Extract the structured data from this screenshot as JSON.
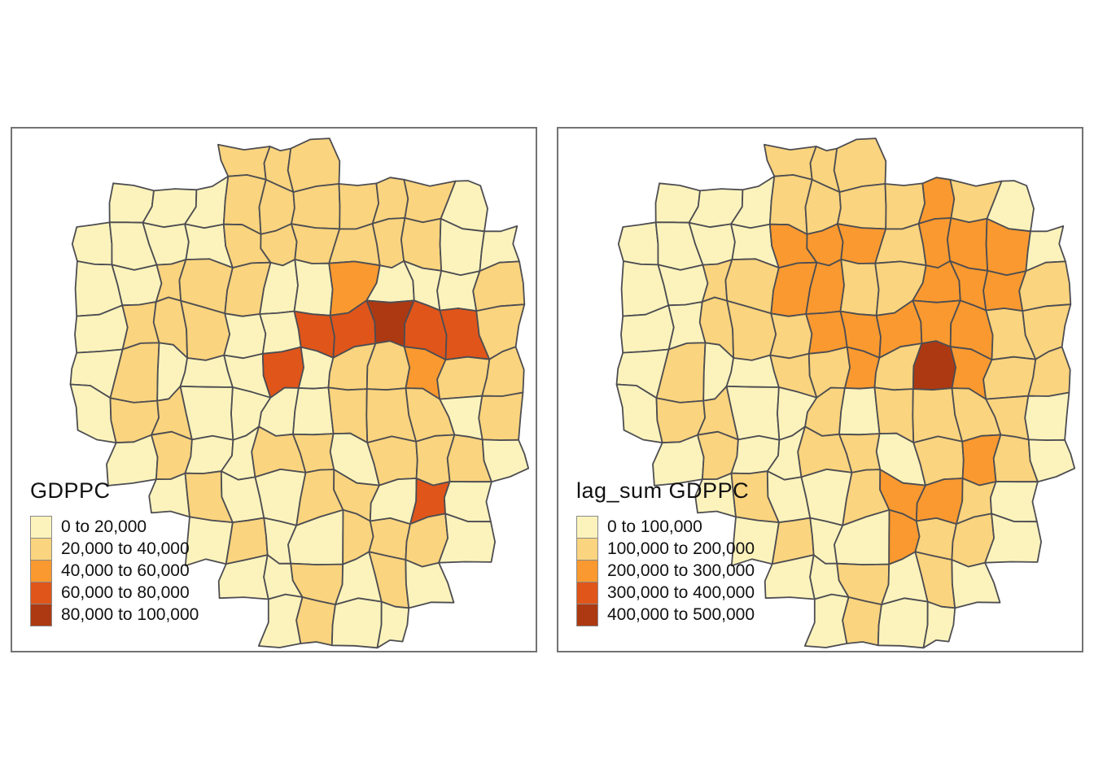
{
  "figure": {
    "background": "#ffffff",
    "map_type": "choropleth",
    "panel_border_color": "#737373"
  },
  "colors": {
    "county_border": "#4d4d52",
    "legend_swatch_border": "#8a8a8a",
    "text": "#111111"
  },
  "palette": {
    "1": "#FCF3BC",
    "2": "#FAD47E",
    "3": "#F9992F",
    "4": "#E0551A",
    "5": "#AC3912"
  },
  "panels": [
    {
      "id": "gdppc",
      "legend_title": "GDPPC",
      "legend_items": [
        {
          "label": "0 to 20,000",
          "class": 1
        },
        {
          "label": "20,000 to 40,000",
          "class": 2
        },
        {
          "label": "40,000 to 60,000",
          "class": 3
        },
        {
          "label": "60,000 to 80,000",
          "class": 4
        },
        {
          "label": "80,000 to 100,000",
          "class": 5
        }
      ],
      "choropleth_classes": [
        [
          0,
          0,
          0,
          0,
          2,
          2,
          2,
          0,
          0,
          0,
          0,
          0
        ],
        [
          0,
          1,
          1,
          1,
          2,
          2,
          2,
          2,
          2,
          2,
          1,
          0
        ],
        [
          1,
          1,
          1,
          1,
          2,
          2,
          2,
          2,
          2,
          2,
          1,
          1
        ],
        [
          1,
          1,
          2,
          2,
          2,
          1,
          1,
          3,
          1,
          1,
          1,
          2
        ],
        [
          1,
          2,
          2,
          2,
          1,
          1,
          4,
          4,
          5,
          4,
          4,
          2
        ],
        [
          1,
          2,
          1,
          1,
          1,
          4,
          1,
          2,
          2,
          3,
          2,
          2
        ],
        [
          1,
          2,
          2,
          1,
          1,
          1,
          1,
          2,
          2,
          2,
          1,
          2
        ],
        [
          0,
          1,
          2,
          1,
          1,
          2,
          2,
          1,
          2,
          2,
          2,
          1
        ],
        [
          0,
          0,
          1,
          2,
          1,
          1,
          2,
          2,
          1,
          4,
          1,
          0
        ],
        [
          0,
          0,
          0,
          1,
          2,
          1,
          1,
          2,
          2,
          2,
          1,
          0
        ],
        [
          0,
          0,
          0,
          0,
          1,
          1,
          2,
          1,
          2,
          1,
          0,
          0
        ],
        [
          0,
          0,
          0,
          0,
          0,
          1,
          2,
          1,
          1,
          0,
          0,
          0
        ]
      ]
    },
    {
      "id": "lag_sum_gdppc",
      "legend_title": "lag_sum GDPPC",
      "legend_items": [
        {
          "label": "0 to 100,000",
          "class": 1
        },
        {
          "label": "100,000 to 200,000",
          "class": 2
        },
        {
          "label": "200,000 to 300,000",
          "class": 3
        },
        {
          "label": "300,000 to 400,000",
          "class": 4
        },
        {
          "label": "400,000 to 500,000",
          "class": 5
        }
      ],
      "choropleth_classes": [
        [
          0,
          0,
          0,
          0,
          2,
          2,
          2,
          0,
          0,
          0,
          0,
          0
        ],
        [
          0,
          1,
          1,
          1,
          2,
          2,
          2,
          2,
          3,
          2,
          1,
          0
        ],
        [
          1,
          1,
          1,
          1,
          3,
          3,
          3,
          2,
          3,
          3,
          3,
          1
        ],
        [
          1,
          1,
          2,
          2,
          3,
          3,
          2,
          2,
          3,
          3,
          3,
          2
        ],
        [
          1,
          1,
          2,
          2,
          2,
          3,
          3,
          3,
          3,
          3,
          2,
          2
        ],
        [
          1,
          2,
          1,
          1,
          2,
          2,
          3,
          2,
          5,
          3,
          2,
          2
        ],
        [
          1,
          2,
          2,
          1,
          1,
          2,
          1,
          2,
          2,
          2,
          2,
          1
        ],
        [
          0,
          1,
          2,
          1,
          1,
          2,
          2,
          1,
          2,
          3,
          2,
          1
        ],
        [
          0,
          0,
          1,
          2,
          1,
          1,
          2,
          3,
          3,
          2,
          1,
          0
        ],
        [
          0,
          0,
          0,
          1,
          2,
          1,
          1,
          3,
          2,
          2,
          1,
          0
        ],
        [
          0,
          0,
          0,
          0,
          1,
          1,
          2,
          1,
          2,
          1,
          0,
          0
        ],
        [
          0,
          0,
          0,
          0,
          0,
          1,
          2,
          1,
          1,
          0,
          0,
          0
        ]
      ]
    }
  ]
}
